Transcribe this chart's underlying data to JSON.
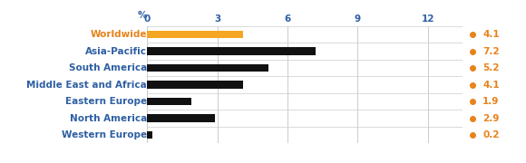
{
  "categories": [
    "Worldwide",
    "Asia-Pacific",
    "South America",
    "Middle East and Africa",
    "Eastern Europe",
    "North America",
    "Western Europe"
  ],
  "values": [
    4.1,
    7.2,
    5.2,
    4.1,
    1.9,
    2.9,
    0.2
  ],
  "bar_colors": [
    "#f5a623",
    "#111111",
    "#111111",
    "#111111",
    "#111111",
    "#111111",
    "#111111"
  ],
  "label_colors": [
    "#e8821a",
    "#2e5fa3",
    "#2e5fa3",
    "#2e5fa3",
    "#2e5fa3",
    "#2e5fa3",
    "#2e5fa3"
  ],
  "value_color": "#e8821a",
  "dot_color": "#e8821a",
  "tick_label_color": "#2e5fa3",
  "percent_label_color": "#2e5fa3",
  "xlim": [
    0,
    13.5
  ],
  "xticks": [
    0,
    3,
    6,
    9,
    12
  ],
  "bar_height": 0.45,
  "background_color": "#ffffff",
  "grid_color": "#cccccc",
  "figwidth": 5.8,
  "figheight": 1.8,
  "dpi": 100
}
